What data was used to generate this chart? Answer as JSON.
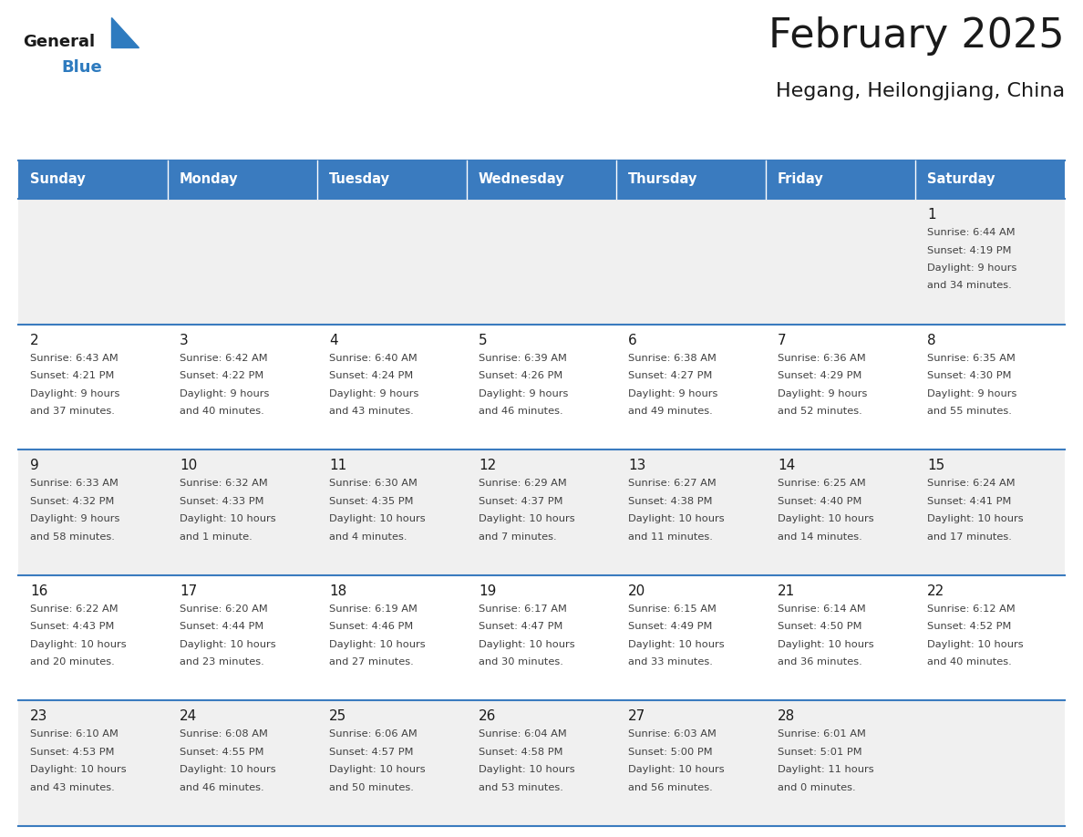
{
  "title": "February 2025",
  "subtitle": "Hegang, Heilongjiang, China",
  "header_color": "#3a7bbf",
  "header_text_color": "#ffffff",
  "days_of_week": [
    "Sunday",
    "Monday",
    "Tuesday",
    "Wednesday",
    "Thursday",
    "Friday",
    "Saturday"
  ],
  "bg_color": "#ffffff",
  "row_colors": [
    "#f0f0f0",
    "#ffffff",
    "#f0f0f0",
    "#ffffff",
    "#f0f0f0"
  ],
  "cell_text_color": "#404040",
  "day_num_color": "#1a1a1a",
  "line_color": "#3a7bbf",
  "logo_general_color": "#1a1a1a",
  "logo_blue_color": "#2e7bbf",
  "calendar_data": [
    [
      null,
      null,
      null,
      null,
      null,
      null,
      {
        "day": "1",
        "sunrise": "6:44 AM",
        "sunset": "4:19 PM",
        "daylight1": "9 hours",
        "daylight2": "and 34 minutes."
      }
    ],
    [
      {
        "day": "2",
        "sunrise": "6:43 AM",
        "sunset": "4:21 PM",
        "daylight1": "9 hours",
        "daylight2": "and 37 minutes."
      },
      {
        "day": "3",
        "sunrise": "6:42 AM",
        "sunset": "4:22 PM",
        "daylight1": "9 hours",
        "daylight2": "and 40 minutes."
      },
      {
        "day": "4",
        "sunrise": "6:40 AM",
        "sunset": "4:24 PM",
        "daylight1": "9 hours",
        "daylight2": "and 43 minutes."
      },
      {
        "day": "5",
        "sunrise": "6:39 AM",
        "sunset": "4:26 PM",
        "daylight1": "9 hours",
        "daylight2": "and 46 minutes."
      },
      {
        "day": "6",
        "sunrise": "6:38 AM",
        "sunset": "4:27 PM",
        "daylight1": "9 hours",
        "daylight2": "and 49 minutes."
      },
      {
        "day": "7",
        "sunrise": "6:36 AM",
        "sunset": "4:29 PM",
        "daylight1": "9 hours",
        "daylight2": "and 52 minutes."
      },
      {
        "day": "8",
        "sunrise": "6:35 AM",
        "sunset": "4:30 PM",
        "daylight1": "9 hours",
        "daylight2": "and 55 minutes."
      }
    ],
    [
      {
        "day": "9",
        "sunrise": "6:33 AM",
        "sunset": "4:32 PM",
        "daylight1": "9 hours",
        "daylight2": "and 58 minutes."
      },
      {
        "day": "10",
        "sunrise": "6:32 AM",
        "sunset": "4:33 PM",
        "daylight1": "10 hours",
        "daylight2": "and 1 minute."
      },
      {
        "day": "11",
        "sunrise": "6:30 AM",
        "sunset": "4:35 PM",
        "daylight1": "10 hours",
        "daylight2": "and 4 minutes."
      },
      {
        "day": "12",
        "sunrise": "6:29 AM",
        "sunset": "4:37 PM",
        "daylight1": "10 hours",
        "daylight2": "and 7 minutes."
      },
      {
        "day": "13",
        "sunrise": "6:27 AM",
        "sunset": "4:38 PM",
        "daylight1": "10 hours",
        "daylight2": "and 11 minutes."
      },
      {
        "day": "14",
        "sunrise": "6:25 AM",
        "sunset": "4:40 PM",
        "daylight1": "10 hours",
        "daylight2": "and 14 minutes."
      },
      {
        "day": "15",
        "sunrise": "6:24 AM",
        "sunset": "4:41 PM",
        "daylight1": "10 hours",
        "daylight2": "and 17 minutes."
      }
    ],
    [
      {
        "day": "16",
        "sunrise": "6:22 AM",
        "sunset": "4:43 PM",
        "daylight1": "10 hours",
        "daylight2": "and 20 minutes."
      },
      {
        "day": "17",
        "sunrise": "6:20 AM",
        "sunset": "4:44 PM",
        "daylight1": "10 hours",
        "daylight2": "and 23 minutes."
      },
      {
        "day": "18",
        "sunrise": "6:19 AM",
        "sunset": "4:46 PM",
        "daylight1": "10 hours",
        "daylight2": "and 27 minutes."
      },
      {
        "day": "19",
        "sunrise": "6:17 AM",
        "sunset": "4:47 PM",
        "daylight1": "10 hours",
        "daylight2": "and 30 minutes."
      },
      {
        "day": "20",
        "sunrise": "6:15 AM",
        "sunset": "4:49 PM",
        "daylight1": "10 hours",
        "daylight2": "and 33 minutes."
      },
      {
        "day": "21",
        "sunrise": "6:14 AM",
        "sunset": "4:50 PM",
        "daylight1": "10 hours",
        "daylight2": "and 36 minutes."
      },
      {
        "day": "22",
        "sunrise": "6:12 AM",
        "sunset": "4:52 PM",
        "daylight1": "10 hours",
        "daylight2": "and 40 minutes."
      }
    ],
    [
      {
        "day": "23",
        "sunrise": "6:10 AM",
        "sunset": "4:53 PM",
        "daylight1": "10 hours",
        "daylight2": "and 43 minutes."
      },
      {
        "day": "24",
        "sunrise": "6:08 AM",
        "sunset": "4:55 PM",
        "daylight1": "10 hours",
        "daylight2": "and 46 minutes."
      },
      {
        "day": "25",
        "sunrise": "6:06 AM",
        "sunset": "4:57 PM",
        "daylight1": "10 hours",
        "daylight2": "and 50 minutes."
      },
      {
        "day": "26",
        "sunrise": "6:04 AM",
        "sunset": "4:58 PM",
        "daylight1": "10 hours",
        "daylight2": "and 53 minutes."
      },
      {
        "day": "27",
        "sunrise": "6:03 AM",
        "sunset": "5:00 PM",
        "daylight1": "10 hours",
        "daylight2": "and 56 minutes."
      },
      {
        "day": "28",
        "sunrise": "6:01 AM",
        "sunset": "5:01 PM",
        "daylight1": "11 hours",
        "daylight2": "and 0 minutes."
      },
      null
    ]
  ],
  "num_rows": 5,
  "num_cols": 7
}
